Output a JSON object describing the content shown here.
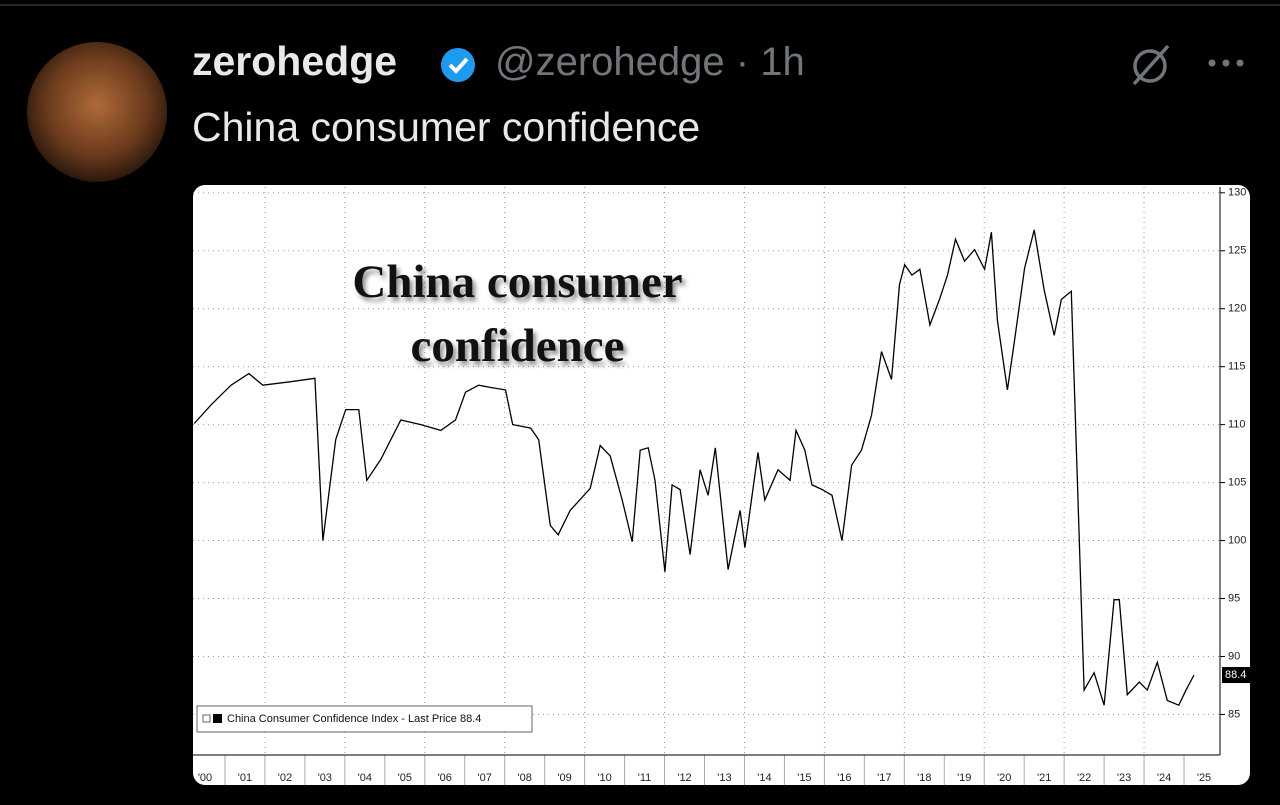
{
  "author": {
    "name": "zerohedge",
    "handle": "@zerohedge",
    "time": "1h"
  },
  "text": "China consumer confidence",
  "chart_data": {
    "type": "line",
    "title": "China consumer confidence",
    "series": [
      {
        "name": "China Consumer Confidence Index - Last Price 88.4",
        "color": "#000000",
        "x": [
          2000.23,
          2000.65,
          2001.15,
          2001.6,
          2001.95,
          2002.65,
          2003.25,
          2003.45,
          2003.77,
          2004.02,
          2004.35,
          2004.55,
          2004.9,
          2005.4,
          2005.9,
          2006.4,
          2006.77,
          2007.02,
          2007.35,
          2007.65,
          2008.02,
          2008.2,
          2008.65,
          2008.85,
          2009.14,
          2009.34,
          2009.64,
          2010.14,
          2010.39,
          2010.64,
          2010.94,
          2011.19,
          2011.39,
          2011.59,
          2011.76,
          2012.01,
          2012.19,
          2012.39,
          2012.64,
          2012.89,
          2013.09,
          2013.27,
          2013.59,
          2013.89,
          2014.01,
          2014.34,
          2014.51,
          2014.84,
          2015.14,
          2015.29,
          2015.51,
          2015.69,
          2015.94,
          2016.19,
          2016.44,
          2016.68,
          2016.93,
          2017.18,
          2017.43,
          2017.68,
          2017.88,
          2018.01,
          2018.19,
          2018.39,
          2018.64,
          2018.88,
          2019.08,
          2019.28,
          2019.51,
          2019.76,
          2020.01,
          2020.18,
          2020.33,
          2020.58,
          2020.76,
          2021.01,
          2021.25,
          2021.5,
          2021.75,
          2021.93,
          2022.18,
          2022.5,
          2022.75,
          2023.0,
          2023.25,
          2023.38,
          2023.58,
          2023.88,
          2024.08,
          2024.33,
          2024.58,
          2024.87,
          2025.05,
          2025.25
        ],
        "values": [
          110.1,
          111.7,
          113.4,
          114.4,
          113.4,
          113.7,
          114.0,
          100.0,
          108.7,
          111.3,
          111.3,
          105.2,
          107.0,
          110.4,
          110.0,
          109.5,
          110.4,
          112.8,
          113.4,
          113.2,
          113.0,
          110.0,
          109.7,
          108.7,
          101.3,
          100.5,
          102.6,
          104.5,
          108.2,
          107.3,
          103.5,
          99.9,
          107.8,
          108.0,
          105.2,
          97.3,
          104.8,
          104.4,
          98.8,
          106.1,
          103.9,
          108.0,
          97.5,
          102.6,
          99.4,
          107.6,
          103.5,
          106.1,
          105.2,
          109.5,
          107.8,
          104.8,
          104.4,
          103.9,
          100.0,
          106.5,
          107.8,
          110.8,
          116.3,
          113.9,
          122.1,
          123.8,
          122.9,
          123.4,
          118.6,
          120.8,
          122.9,
          126.0,
          124.1,
          125.1,
          123.4,
          126.6,
          119.0,
          113.0,
          117.3,
          123.5,
          126.8,
          121.6,
          117.7,
          120.8,
          121.5,
          87.1,
          88.6,
          85.8,
          94.9,
          94.9,
          86.7,
          87.8,
          87.1,
          89.5,
          86.2,
          85.8,
          87.1,
          88.4
        ]
      }
    ],
    "xlim": [
      2000.2,
      2025.9
    ],
    "xticks": [
      {
        "value": 2000,
        "label": "'00"
      },
      {
        "value": 2001,
        "label": "'01"
      },
      {
        "value": 2002,
        "label": "'02"
      },
      {
        "value": 2003,
        "label": "'03"
      },
      {
        "value": 2004,
        "label": "'04"
      },
      {
        "value": 2005,
        "label": "'05"
      },
      {
        "value": 2006,
        "label": "'06"
      },
      {
        "value": 2007,
        "label": "'07"
      },
      {
        "value": 2008,
        "label": "'08"
      },
      {
        "value": 2009,
        "label": "'09"
      },
      {
        "value": 2010,
        "label": "'10"
      },
      {
        "value": 2011,
        "label": "'11"
      },
      {
        "value": 2012,
        "label": "'12"
      },
      {
        "value": 2013,
        "label": "'13"
      },
      {
        "value": 2014,
        "label": "'14"
      },
      {
        "value": 2015,
        "label": "'15"
      },
      {
        "value": 2016,
        "label": "'16"
      },
      {
        "value": 2017,
        "label": "'17"
      },
      {
        "value": 2018,
        "label": "'18"
      },
      {
        "value": 2019,
        "label": "'19"
      },
      {
        "value": 2020,
        "label": "'20"
      },
      {
        "value": 2021,
        "label": "'21"
      },
      {
        "value": 2022,
        "label": "'22"
      },
      {
        "value": 2023,
        "label": "'23"
      },
      {
        "value": 2024,
        "label": "'24"
      },
      {
        "value": 2025,
        "label": "'25"
      }
    ],
    "ylim": [
      81.5,
      130.5
    ],
    "yticks": [
      85,
      90,
      95,
      100,
      105,
      110,
      115,
      120,
      125,
      130
    ],
    "grid": true,
    "legend": "lower left"
  }
}
